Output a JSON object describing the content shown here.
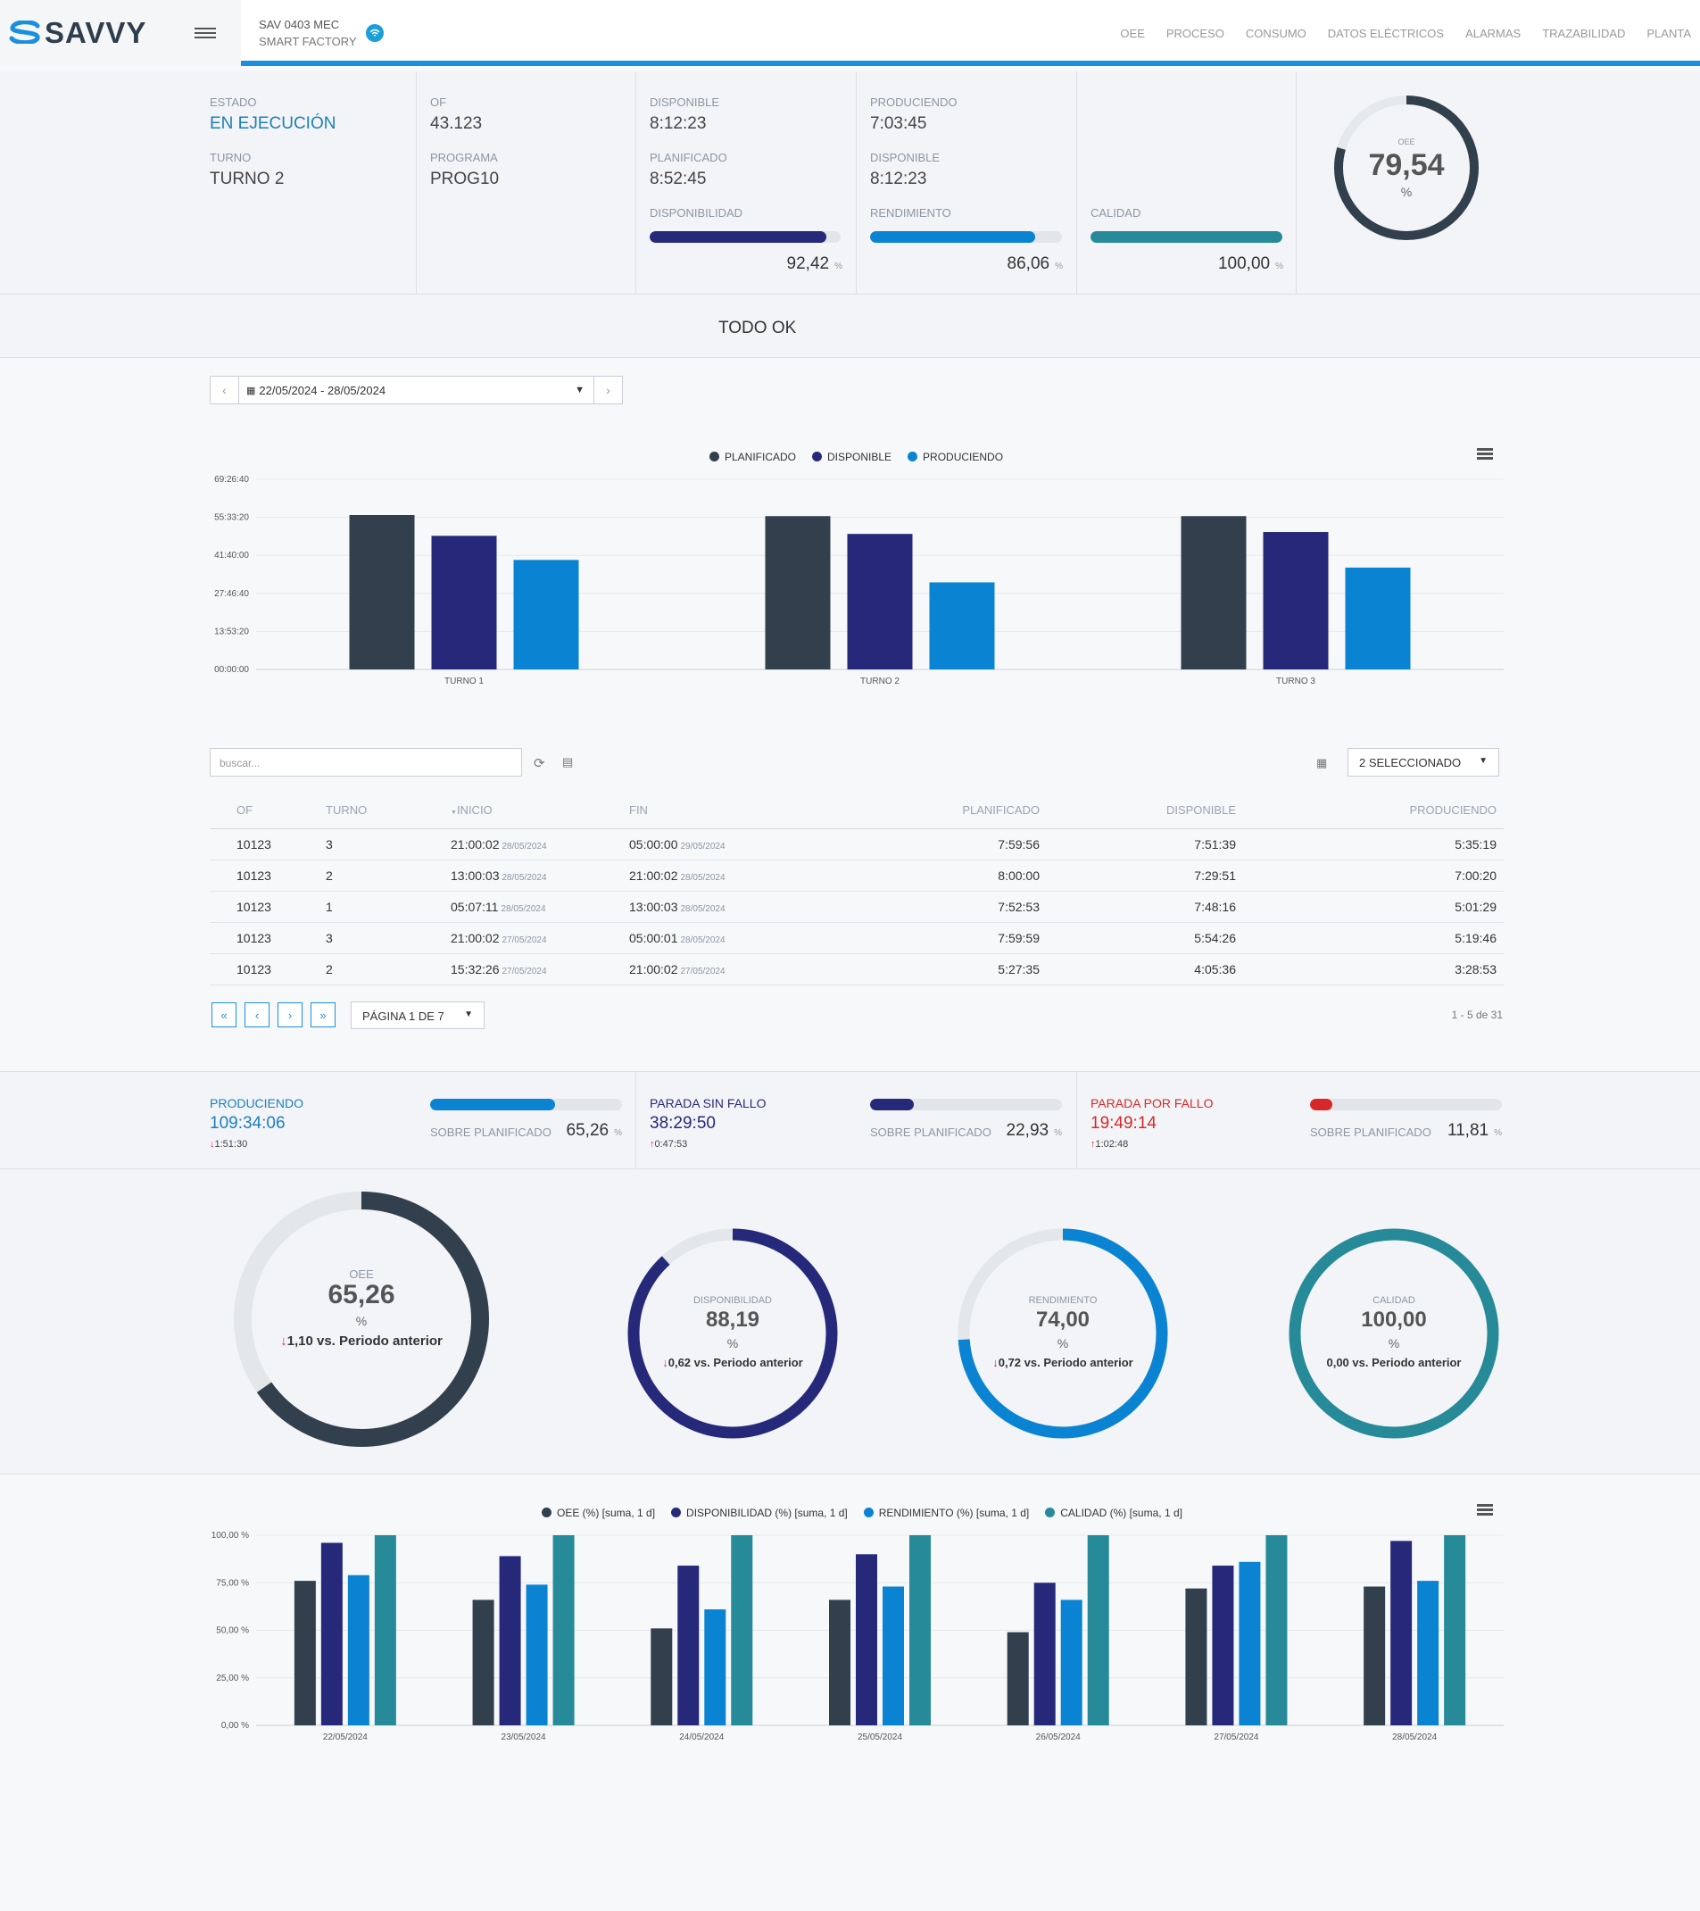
{
  "header": {
    "logo": "SAVVY",
    "machine": "SAV 0403 MEC",
    "factory": "SMART FACTORY",
    "nav": [
      "OEE",
      "PROCESO",
      "CONSUMO",
      "DATOS ELÉCTRICOS",
      "ALARMAS",
      "TRAZABILIDAD",
      "PLANTA"
    ]
  },
  "status": {
    "estado_label": "ESTADO",
    "estado_value": "EN EJECUCIÓN",
    "turno_label": "TURNO",
    "turno_value": "TURNO 2",
    "of_label": "OF",
    "of_value": "43.123",
    "programa_label": "PROGRAMA",
    "programa_value": "PROG10",
    "c3": {
      "l1": "DISPONIBLE",
      "v1": "8:12:23",
      "l2": "PLANIFICADO",
      "v2": "8:52:45",
      "bar_label": "DISPONIBILIDAD",
      "bar_value": "92,42",
      "bar_pct": 92.42,
      "unit": "%"
    },
    "c4": {
      "l1": "PRODUCIENDO",
      "v1": "7:03:45",
      "l2": "DISPONIBLE",
      "v2": "8:12:23",
      "bar_label": "RENDIMIENTO",
      "bar_value": "86,06",
      "bar_pct": 86.06,
      "unit": "%"
    },
    "c5": {
      "bar_label": "CALIDAD",
      "bar_value": "100,00",
      "bar_pct": 100,
      "unit": "%"
    },
    "oee": {
      "label": "OEE",
      "value": "79,54",
      "unit": "%",
      "pct": 79.54
    }
  },
  "todo_ok": "TODO OK",
  "date_range": "22/05/2024 - 28/05/2024",
  "shift_chart": {
    "legend": [
      "PLANIFICADO",
      "DISPONIBLE",
      "PRODUCIENDO"
    ],
    "yticks": [
      "69:26:40",
      "55:33:20",
      "41:40:00",
      "27:46:40",
      "13:53:20",
      "00:00:00"
    ]
  },
  "chart_data": [
    {
      "type": "bar",
      "categories": [
        "TURNO 1",
        "TURNO 2",
        "TURNO 3"
      ],
      "ylim": [
        0,
        69.444
      ],
      "y_unit": "hours",
      "series": [
        {
          "name": "PLANIFICADO",
          "values": [
            56.4,
            56.0,
            56.0
          ],
          "color": "#323f4d"
        },
        {
          "name": "DISPONIBLE",
          "values": [
            48.8,
            49.5,
            50.2
          ],
          "color": "#26297a"
        },
        {
          "name": "PRODUCIENDO",
          "values": [
            40.0,
            31.8,
            37.2
          ],
          "color": "#0a84d2"
        }
      ]
    },
    {
      "type": "bar",
      "categories": [
        "22/05/2024",
        "23/05/2024",
        "24/05/2024",
        "25/05/2024",
        "26/05/2024",
        "27/05/2024",
        "28/05/2024"
      ],
      "ylim": [
        0,
        100
      ],
      "yticks": [
        "100,00 %",
        "75,00 %",
        "50,00 %",
        "25,00 %",
        "0,00 %"
      ],
      "series": [
        {
          "name": "OEE (%) [suma, 1 d]",
          "values": [
            76,
            66,
            51,
            66,
            49,
            72,
            73
          ],
          "color": "#323f4d"
        },
        {
          "name": "DISPONIBILIDAD (%) [suma, 1 d]",
          "values": [
            96,
            89,
            84,
            90,
            75,
            84,
            97
          ],
          "color": "#26297a"
        },
        {
          "name": "RENDIMIENTO (%) [suma, 1 d]",
          "values": [
            79,
            74,
            61,
            73,
            66,
            86,
            76
          ],
          "color": "#0a84d2"
        },
        {
          "name": "CALIDAD (%) [suma, 1 d]",
          "values": [
            100,
            100,
            100,
            100,
            100,
            100,
            100
          ],
          "color": "#268a99"
        }
      ]
    }
  ],
  "table": {
    "search_placeholder": "buscar...",
    "col_select": "2 SELECCIONADO",
    "headers": [
      "OF",
      "TURNO",
      "INICIO",
      "FIN",
      "PLANIFICADO",
      "DISPONIBLE",
      "PRODUCIENDO"
    ],
    "rows": [
      {
        "of": "10123",
        "turno": "3",
        "inicio": "21:00:02",
        "inicio_d": "28/05/2024",
        "fin": "05:00:00",
        "fin_d": "29/05/2024",
        "plan": "7:59:56",
        "disp": "7:51:39",
        "prod": "5:35:19"
      },
      {
        "of": "10123",
        "turno": "2",
        "inicio": "13:00:03",
        "inicio_d": "28/05/2024",
        "fin": "21:00:02",
        "fin_d": "28/05/2024",
        "plan": "8:00:00",
        "disp": "7:29:51",
        "prod": "7:00:20"
      },
      {
        "of": "10123",
        "turno": "1",
        "inicio": "05:07:11",
        "inicio_d": "28/05/2024",
        "fin": "13:00:03",
        "fin_d": "28/05/2024",
        "plan": "7:52:53",
        "disp": "7:48:16",
        "prod": "5:01:29"
      },
      {
        "of": "10123",
        "turno": "3",
        "inicio": "21:00:02",
        "inicio_d": "27/05/2024",
        "fin": "05:00:01",
        "fin_d": "28/05/2024",
        "plan": "7:59:59",
        "disp": "5:54:26",
        "prod": "5:19:46"
      },
      {
        "of": "10123",
        "turno": "2",
        "inicio": "15:32:26",
        "inicio_d": "27/05/2024",
        "fin": "21:00:02",
        "fin_d": "27/05/2024",
        "plan": "5:27:35",
        "disp": "4:05:36",
        "prod": "3:28:53"
      }
    ],
    "page_label": "PÁGINA 1 DE 7",
    "count_label": "1 - 5 de 31"
  },
  "summary": [
    {
      "label": "PRODUCIENDO",
      "value": "109:34:06",
      "delta": "1:51:30",
      "delta_dir": "down",
      "sub_label": "SOBRE PLANIFICADO",
      "pct_text": "65,26",
      "pct": 65.26,
      "color": "#0a84d2",
      "unit": "%"
    },
    {
      "label": "PARADA SIN FALLO",
      "value": "38:29:50",
      "delta": "0:47:53",
      "delta_dir": "up",
      "sub_label": "SOBRE PLANIFICADO",
      "pct_text": "22,93",
      "pct": 22.93,
      "color": "#26297a",
      "unit": "%"
    },
    {
      "label": "PARADA POR FALLO",
      "value": "19:49:14",
      "delta": "1:02:48",
      "delta_dir": "up",
      "sub_label": "SOBRE PLANIFICADO",
      "pct_text": "11,81",
      "pct": 11.81,
      "color": "#d62828",
      "unit": "%"
    }
  ],
  "gauges": [
    {
      "label": "OEE",
      "value": "65,26",
      "unit": "%",
      "pct": 65.26,
      "cmp": "1,10 vs. Periodo anterior",
      "arrow": "↓",
      "color": "#323f4d"
    },
    {
      "label": "DISPONIBILIDAD",
      "value": "88,19",
      "unit": "%",
      "pct": 88.19,
      "cmp": "0,62 vs. Periodo anterior",
      "arrow": "↓",
      "color": "#26297a"
    },
    {
      "label": "RENDIMIENTO",
      "value": "74,00",
      "unit": "%",
      "pct": 74.0,
      "cmp": "0,72 vs. Periodo anterior",
      "arrow": "↓",
      "color": "#0a84d2"
    },
    {
      "label": "CALIDAD",
      "value": "100,00",
      "unit": "%",
      "pct": 100,
      "cmp": "0,00 vs. Periodo anterior",
      "arrow": "",
      "color": "#268a99"
    }
  ]
}
